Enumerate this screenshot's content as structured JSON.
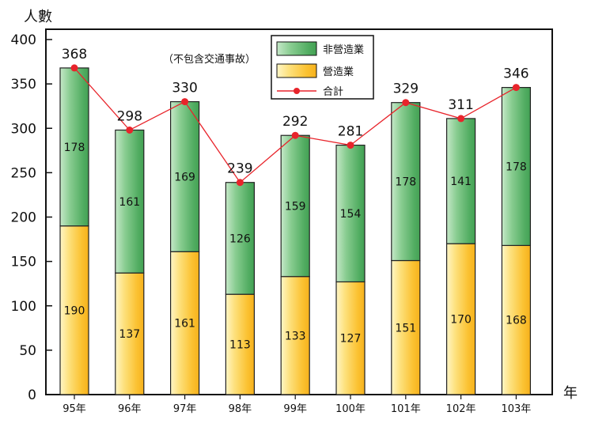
{
  "chart_data": {
    "type": "bar",
    "stacked": true,
    "ylabel": "人數",
    "xlabel": "年",
    "ylim": [
      0,
      400
    ],
    "yticks": [
      0,
      50,
      100,
      150,
      200,
      250,
      300,
      350,
      400
    ],
    "categories": [
      "95年",
      "96年",
      "97年",
      "98年",
      "99年",
      "100年",
      "101年",
      "102年",
      "103年"
    ],
    "series": [
      {
        "name": "營造業",
        "values": [
          190,
          137,
          161,
          113,
          133,
          127,
          151,
          170,
          168
        ],
        "color": "#fbc94a"
      },
      {
        "name": "非營造業",
        "values": [
          178,
          161,
          169,
          126,
          159,
          154,
          178,
          141,
          178
        ],
        "color": "#5cb66f"
      }
    ],
    "total": {
      "name": "合計",
      "values": [
        368,
        298,
        330,
        239,
        292,
        281,
        329,
        311,
        346
      ],
      "color": "#e8242b"
    },
    "annotation": "（不包含交通事故）",
    "grid": false,
    "legend_position": "top-center"
  }
}
